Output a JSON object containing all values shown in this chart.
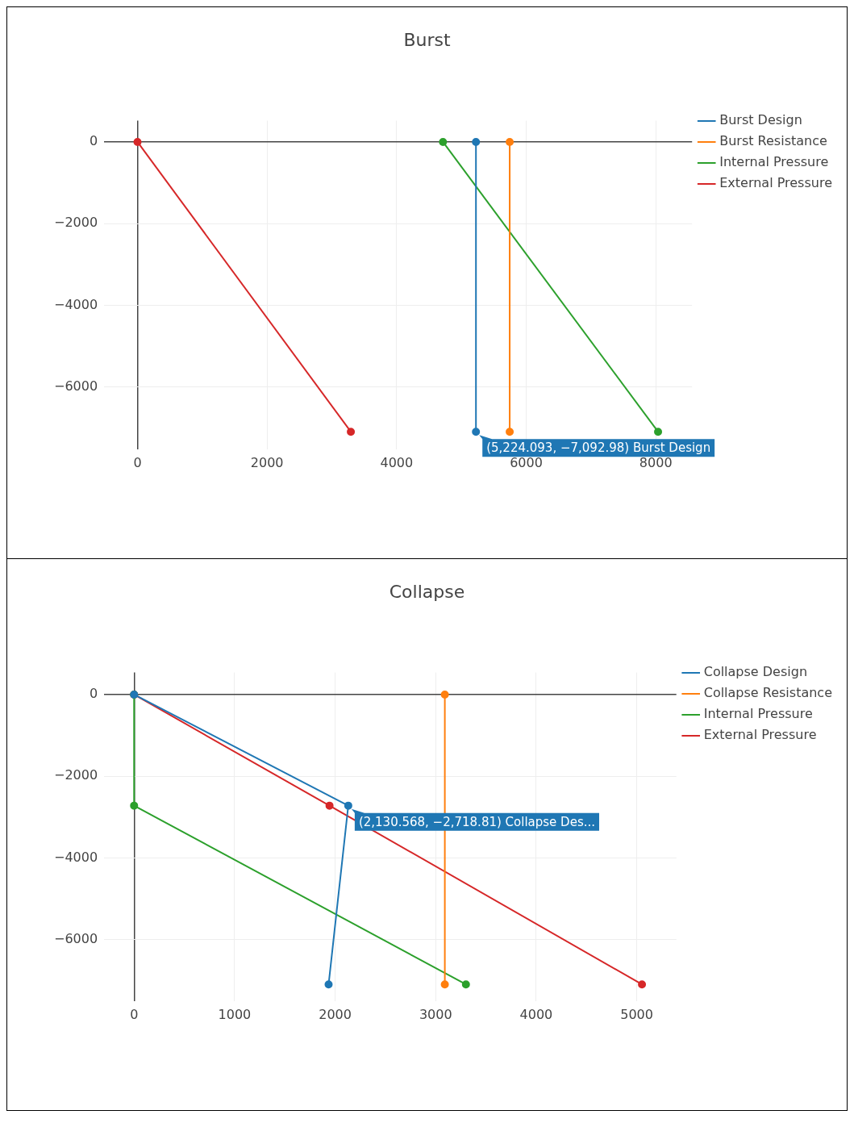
{
  "chart_data": [
    {
      "type": "line",
      "title": "Burst",
      "xlim": [
        -515,
        8560
      ],
      "xticks": [
        0,
        2000,
        4000,
        6000,
        8000
      ],
      "ylim": [
        -7520,
        520
      ],
      "yticks": [
        -6000,
        -4000,
        -2000,
        0
      ],
      "grid": true,
      "legend": "top right",
      "marker": "circle",
      "line_style": "solid",
      "series": [
        {
          "name": "Burst Design",
          "color": "#1f77b4",
          "x": [
            5224.093,
            5224.093
          ],
          "values": [
            0,
            -7092.98
          ]
        },
        {
          "name": "Burst Resistance",
          "color": "#ff7f0e",
          "x": [
            5745,
            5745
          ],
          "values": [
            0,
            -7092.98
          ]
        },
        {
          "name": "Internal Pressure",
          "color": "#2ca02c",
          "x": [
            4715,
            8035
          ],
          "values": [
            0,
            -7092.98
          ]
        },
        {
          "name": "External Pressure",
          "color": "#d62728",
          "x": [
            0,
            3293
          ],
          "values": [
            0,
            -7092.98
          ]
        }
      ],
      "annotations": [
        {
          "text": "(5,224.093, −7,092.98) Burst Design",
          "x": 5224.093,
          "y": -7092.98
        }
      ]
    },
    {
      "type": "line",
      "title": "Collapse",
      "xlim": [
        -298,
        5394
      ],
      "xticks": [
        0,
        1000,
        2000,
        3000,
        4000,
        5000
      ],
      "ylim": [
        -7500,
        540
      ],
      "yticks": [
        -6000,
        -4000,
        -2000,
        0
      ],
      "grid": true,
      "legend": "top right",
      "marker": "circle",
      "line_style": "solid",
      "series": [
        {
          "name": "Collapse Design",
          "color": "#1f77b4",
          "x": [
            0,
            2130.568,
            1935
          ],
          "values": [
            0,
            -2718.81,
            -7092.98
          ]
        },
        {
          "name": "Collapse Resistance",
          "color": "#ff7f0e",
          "x": [
            3091,
            3091
          ],
          "values": [
            0,
            -7092.98
          ]
        },
        {
          "name": "Internal Pressure",
          "color": "#2ca02c",
          "x": [
            0,
            0,
            3301
          ],
          "values": [
            0,
            -2718.81,
            -7092.98
          ]
        },
        {
          "name": "External Pressure",
          "color": "#d62728",
          "x": [
            0,
            1944,
            5052
          ],
          "values": [
            0,
            -2718.81,
            -7092.98
          ]
        }
      ],
      "annotations": [
        {
          "text": "(2,130.568, −2,718.81) Collapse Des...",
          "x": 2130.568,
          "y": -2718.81
        }
      ]
    }
  ]
}
